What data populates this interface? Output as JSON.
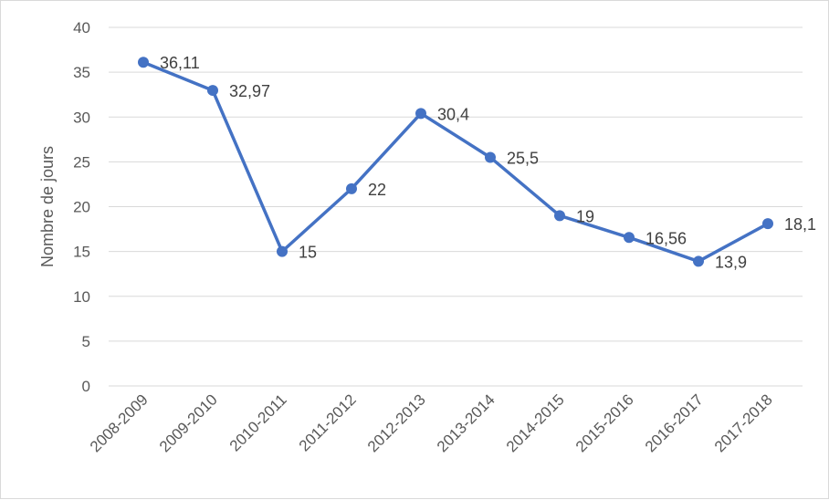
{
  "chart_data": {
    "type": "line",
    "title": "",
    "xlabel": "",
    "ylabel": "Nombre de jours",
    "ylim": [
      0,
      40
    ],
    "ytick_step": 5,
    "grid": true,
    "legend": "none",
    "categories": [
      "2008-2009",
      "2009-2010",
      "2010-2011",
      "2011-2012",
      "2012-2013",
      "2013-2014",
      "2014-2015",
      "2015-2016",
      "2016-2017",
      "2017-2018"
    ],
    "series": [
      {
        "values": [
          36.11,
          32.97,
          15,
          22,
          30.4,
          25.5,
          19,
          16.56,
          13.9,
          18.1
        ],
        "data_labels": [
          "36,11",
          "32,97",
          "15",
          "22",
          "30,4",
          "25,5",
          "19",
          "16,56",
          "13,9",
          "18,1"
        ],
        "color": "#4472c4"
      }
    ],
    "gridline_color": "#d9d9d9",
    "text_color": "#595959"
  }
}
